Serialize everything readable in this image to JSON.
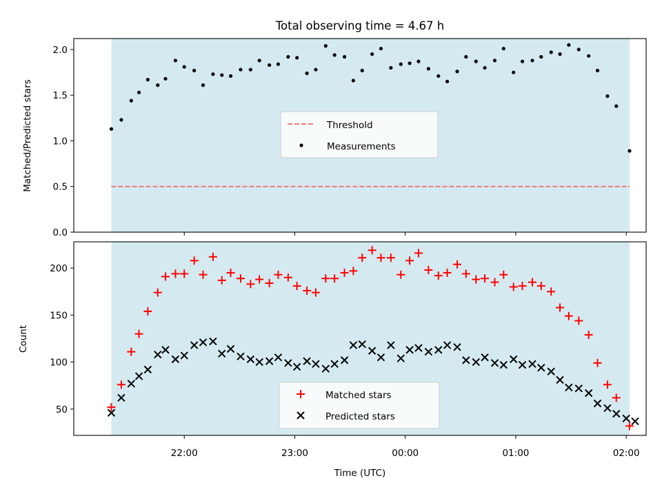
{
  "figure": {
    "title": "Total observing time = 4.67 h",
    "xlabel": "Time (UTC)",
    "x_tick_labels": [
      "22:00",
      "23:00",
      "00:00",
      "01:00",
      "02:00"
    ],
    "x_ticks_hours": [
      22,
      23,
      24,
      25,
      26
    ],
    "xlim_hours": [
      21.0,
      26.18
    ]
  },
  "colors": {
    "observing_window": "#d4eaf0",
    "threshold": "#f07878",
    "measurements": "#000000",
    "matched": "#ff0000",
    "predicted": "#000000"
  },
  "chart_data": [
    {
      "type": "scatter",
      "ylabel": "Matched/Predicted stars",
      "ylim": [
        0.0,
        2.12
      ],
      "y_ticks": [
        0.0,
        0.5,
        1.0,
        1.5,
        2.0
      ],
      "y_tick_labels": [
        "0.0",
        "0.5",
        "1.0",
        "1.5",
        "2.0"
      ],
      "observing_window_hours": [
        21.34,
        26.03
      ],
      "threshold": 0.5,
      "legend_position": "center-right",
      "series": [
        {
          "name": "Threshold",
          "style": "dashed-line",
          "values": [
            0.5
          ]
        },
        {
          "name": "Measurements",
          "style": "dot",
          "x_hours": [
            21.34,
            21.43,
            21.52,
            21.59,
            21.67,
            21.76,
            21.83,
            21.92,
            22.0,
            22.09,
            22.17,
            22.26,
            22.34,
            22.42,
            22.51,
            22.6,
            22.68,
            22.77,
            22.85,
            22.94,
            23.02,
            23.11,
            23.19,
            23.28,
            23.36,
            23.45,
            23.53,
            23.61,
            23.7,
            23.78,
            23.87,
            23.96,
            24.04,
            24.12,
            24.21,
            24.3,
            24.38,
            24.47,
            24.55,
            24.64,
            24.72,
            24.81,
            24.89,
            24.98,
            25.06,
            25.15,
            25.23,
            25.32,
            25.4,
            25.48,
            25.57,
            25.66,
            25.74,
            25.83,
            25.91,
            26.03
          ],
          "values": [
            1.13,
            1.23,
            1.44,
            1.53,
            1.67,
            1.61,
            1.68,
            1.88,
            1.81,
            1.77,
            1.61,
            1.73,
            1.72,
            1.71,
            1.78,
            1.78,
            1.88,
            1.83,
            1.84,
            1.92,
            1.91,
            1.74,
            1.78,
            2.04,
            1.94,
            1.92,
            1.66,
            1.77,
            1.95,
            2.01,
            1.8,
            1.84,
            1.85,
            1.87,
            1.79,
            1.71,
            1.65,
            1.76,
            1.92,
            1.87,
            1.8,
            1.88,
            2.01,
            1.75,
            1.87,
            1.88,
            1.92,
            1.97,
            1.95,
            2.05,
            2.0,
            1.93,
            1.77,
            1.49,
            1.38,
            0.89
          ]
        }
      ]
    },
    {
      "type": "scatter",
      "ylabel": "Count",
      "ylim": [
        22,
        228
      ],
      "y_ticks": [
        50,
        100,
        150,
        200
      ],
      "y_tick_labels": [
        "50",
        "100",
        "150",
        "200"
      ],
      "observing_window_hours": [
        21.34,
        26.03
      ],
      "legend_position": "bottom-center",
      "series": [
        {
          "name": "Matched stars",
          "style": "plus",
          "x_hours": [
            21.34,
            21.43,
            21.52,
            21.59,
            21.67,
            21.76,
            21.83,
            21.92,
            22.0,
            22.09,
            22.17,
            22.26,
            22.34,
            22.42,
            22.51,
            22.6,
            22.68,
            22.77,
            22.85,
            22.94,
            23.02,
            23.11,
            23.19,
            23.28,
            23.36,
            23.45,
            23.53,
            23.61,
            23.7,
            23.78,
            23.87,
            23.96,
            24.04,
            24.12,
            24.21,
            24.3,
            24.38,
            24.47,
            24.55,
            24.64,
            24.72,
            24.81,
            24.89,
            24.98,
            25.06,
            25.15,
            25.23,
            25.32,
            25.4,
            25.48,
            25.57,
            25.66,
            25.74,
            25.83,
            25.91,
            26.03
          ],
          "values": [
            52,
            76,
            111,
            130,
            154,
            174,
            191,
            194,
            194,
            208,
            193,
            212,
            187,
            195,
            189,
            183,
            188,
            184,
            193,
            190,
            181,
            176,
            174,
            189,
            189,
            195,
            197,
            211,
            219,
            211,
            211,
            193,
            208,
            216,
            198,
            192,
            195,
            204,
            194,
            188,
            189,
            185,
            193,
            180,
            181,
            185,
            181,
            175,
            158,
            149,
            144,
            129,
            99,
            76,
            62,
            32
          ]
        },
        {
          "name": "Predicted stars",
          "style": "x",
          "x_hours": [
            21.34,
            21.43,
            21.52,
            21.59,
            21.67,
            21.76,
            21.83,
            21.92,
            22.0,
            22.09,
            22.17,
            22.26,
            22.34,
            22.42,
            22.51,
            22.6,
            22.68,
            22.77,
            22.85,
            22.94,
            23.02,
            23.11,
            23.19,
            23.28,
            23.36,
            23.45,
            23.53,
            23.61,
            23.7,
            23.78,
            23.87,
            23.96,
            24.04,
            24.12,
            24.21,
            24.3,
            24.38,
            24.47,
            24.55,
            24.64,
            24.72,
            24.81,
            24.89,
            24.98,
            25.06,
            25.15,
            25.23,
            25.32,
            25.4,
            25.48,
            25.57,
            25.66,
            25.74,
            25.83,
            25.91,
            26.0,
            26.08
          ],
          "values": [
            46,
            62,
            77,
            85,
            92,
            108,
            113,
            103,
            107,
            118,
            121,
            122,
            109,
            114,
            106,
            103,
            100,
            101,
            105,
            99,
            95,
            101,
            98,
            93,
            98,
            102,
            118,
            119,
            112,
            105,
            118,
            104,
            113,
            115,
            111,
            113,
            118,
            116,
            102,
            100,
            105,
            99,
            97,
            103,
            97,
            98,
            94,
            90,
            81,
            73,
            72,
            67,
            56,
            51,
            45,
            40,
            37
          ]
        }
      ]
    }
  ]
}
